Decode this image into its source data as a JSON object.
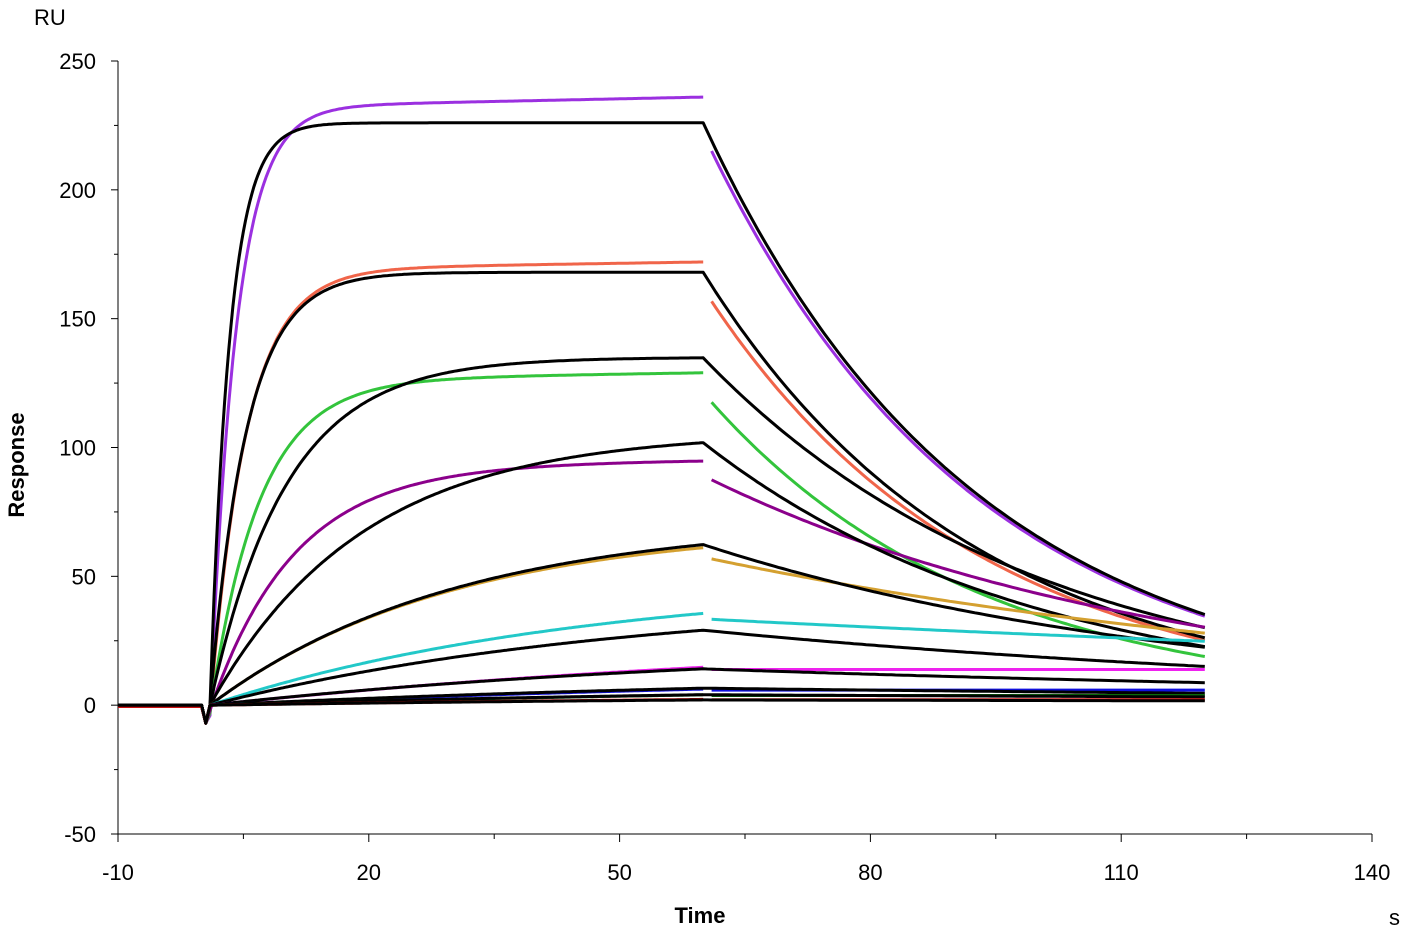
{
  "chart_data": {
    "type": "line",
    "title": "",
    "xlabel": "Time",
    "ylabel": "Response",
    "x_unit": "s",
    "y_unit": "RU",
    "xlim": [
      -10,
      140
    ],
    "ylim": [
      -50,
      250
    ],
    "x_ticks": [
      -10,
      20,
      50,
      80,
      110,
      140
    ],
    "y_ticks": [
      -50,
      0,
      50,
      100,
      150,
      200,
      250
    ],
    "x_tick_labels": [
      "-10",
      "20",
      "50",
      "80",
      "110",
      "140"
    ],
    "y_tick_labels": [
      "-50",
      "0",
      "50",
      "100",
      "150",
      "200",
      "250"
    ],
    "grid": false,
    "legend": "none",
    "injection_start": 0,
    "injection_end": 60,
    "dissociation_end": 120,
    "series": [
      {
        "color": "#9b30e0",
        "kind": "measured",
        "rmax": 236,
        "kon": 0.32,
        "drift": 4,
        "koff": 0.031,
        "baseline": 1
      },
      {
        "color": "#000000",
        "kind": "fit",
        "rmax": 226,
        "kon": 0.42,
        "drift": 0,
        "koff": 0.031,
        "baseline": 0
      },
      {
        "color": "#f0654a",
        "kind": "measured",
        "rmax": 172,
        "kon": 0.23,
        "drift": 3,
        "koff": 0.031,
        "baseline": 1
      },
      {
        "color": "#000000",
        "kind": "fit",
        "rmax": 168,
        "kon": 0.23,
        "drift": 0,
        "koff": 0.031,
        "baseline": 0
      },
      {
        "color": "#33c43c",
        "kind": "measured",
        "rmax": 129,
        "kon": 0.17,
        "drift": 3,
        "koff": 0.031,
        "baseline": 1
      },
      {
        "color": "#000000",
        "kind": "fit",
        "rmax": 135,
        "kon": 0.11,
        "drift": 0,
        "koff": 0.025,
        "baseline": 0
      },
      {
        "color": "#8b008b",
        "kind": "measured",
        "rmax": 95,
        "kon": 0.1,
        "drift": 2,
        "koff": 0.018,
        "baseline": 1
      },
      {
        "color": "#000000",
        "kind": "fit",
        "rmax": 106,
        "kon": 0.055,
        "drift": 0,
        "koff": 0.025,
        "baseline": 0
      },
      {
        "color": "#d4a030",
        "kind": "measured",
        "rmax": 70,
        "kon": 0.035,
        "drift": 0,
        "koff": 0.012,
        "baseline": 1
      },
      {
        "color": "#000000",
        "kind": "fit",
        "rmax": 72,
        "kon": 0.034,
        "drift": 0,
        "koff": 0.017,
        "baseline": 0
      },
      {
        "color": "#22c8c8",
        "kind": "measured",
        "rmax": 49,
        "kon": 0.022,
        "drift": 0,
        "koff": 0.005,
        "baseline": 1
      },
      {
        "color": "#000000",
        "kind": "fit",
        "rmax": 42,
        "kon": 0.02,
        "drift": 0,
        "koff": 0.011,
        "baseline": 0
      },
      {
        "color": "#ee22ee",
        "kind": "measured",
        "rmax": 29,
        "kon": 0.012,
        "drift": 0,
        "koff": 0.0,
        "baseline": 1
      },
      {
        "color": "#000000",
        "kind": "fit",
        "rmax": 24,
        "kon": 0.015,
        "drift": 0,
        "koff": 0.008,
        "baseline": 0
      },
      {
        "color": "#1010dd",
        "kind": "measured",
        "rmax": 14,
        "kon": 0.01,
        "drift": 0,
        "koff": 0.0,
        "baseline": 1
      },
      {
        "color": "#000000",
        "kind": "fit",
        "rmax": 13,
        "kon": 0.012,
        "drift": 0,
        "koff": 0.006,
        "baseline": 0
      },
      {
        "color": "#0a6a0a",
        "kind": "measured",
        "rmax": 9,
        "kon": 0.01,
        "drift": 0,
        "koff": 0.0,
        "baseline": 1
      },
      {
        "color": "#000000",
        "kind": "fit",
        "rmax": 8,
        "kon": 0.012,
        "drift": 0,
        "koff": 0.004,
        "baseline": 0
      },
      {
        "color": "#cc1010",
        "kind": "measured",
        "rmax": 5,
        "kon": 0.01,
        "drift": 0,
        "koff": 0.0,
        "baseline": 1
      },
      {
        "color": "#000000",
        "kind": "fit",
        "rmax": 4,
        "kon": 0.012,
        "drift": 0,
        "koff": 0.003,
        "baseline": 0
      }
    ]
  }
}
